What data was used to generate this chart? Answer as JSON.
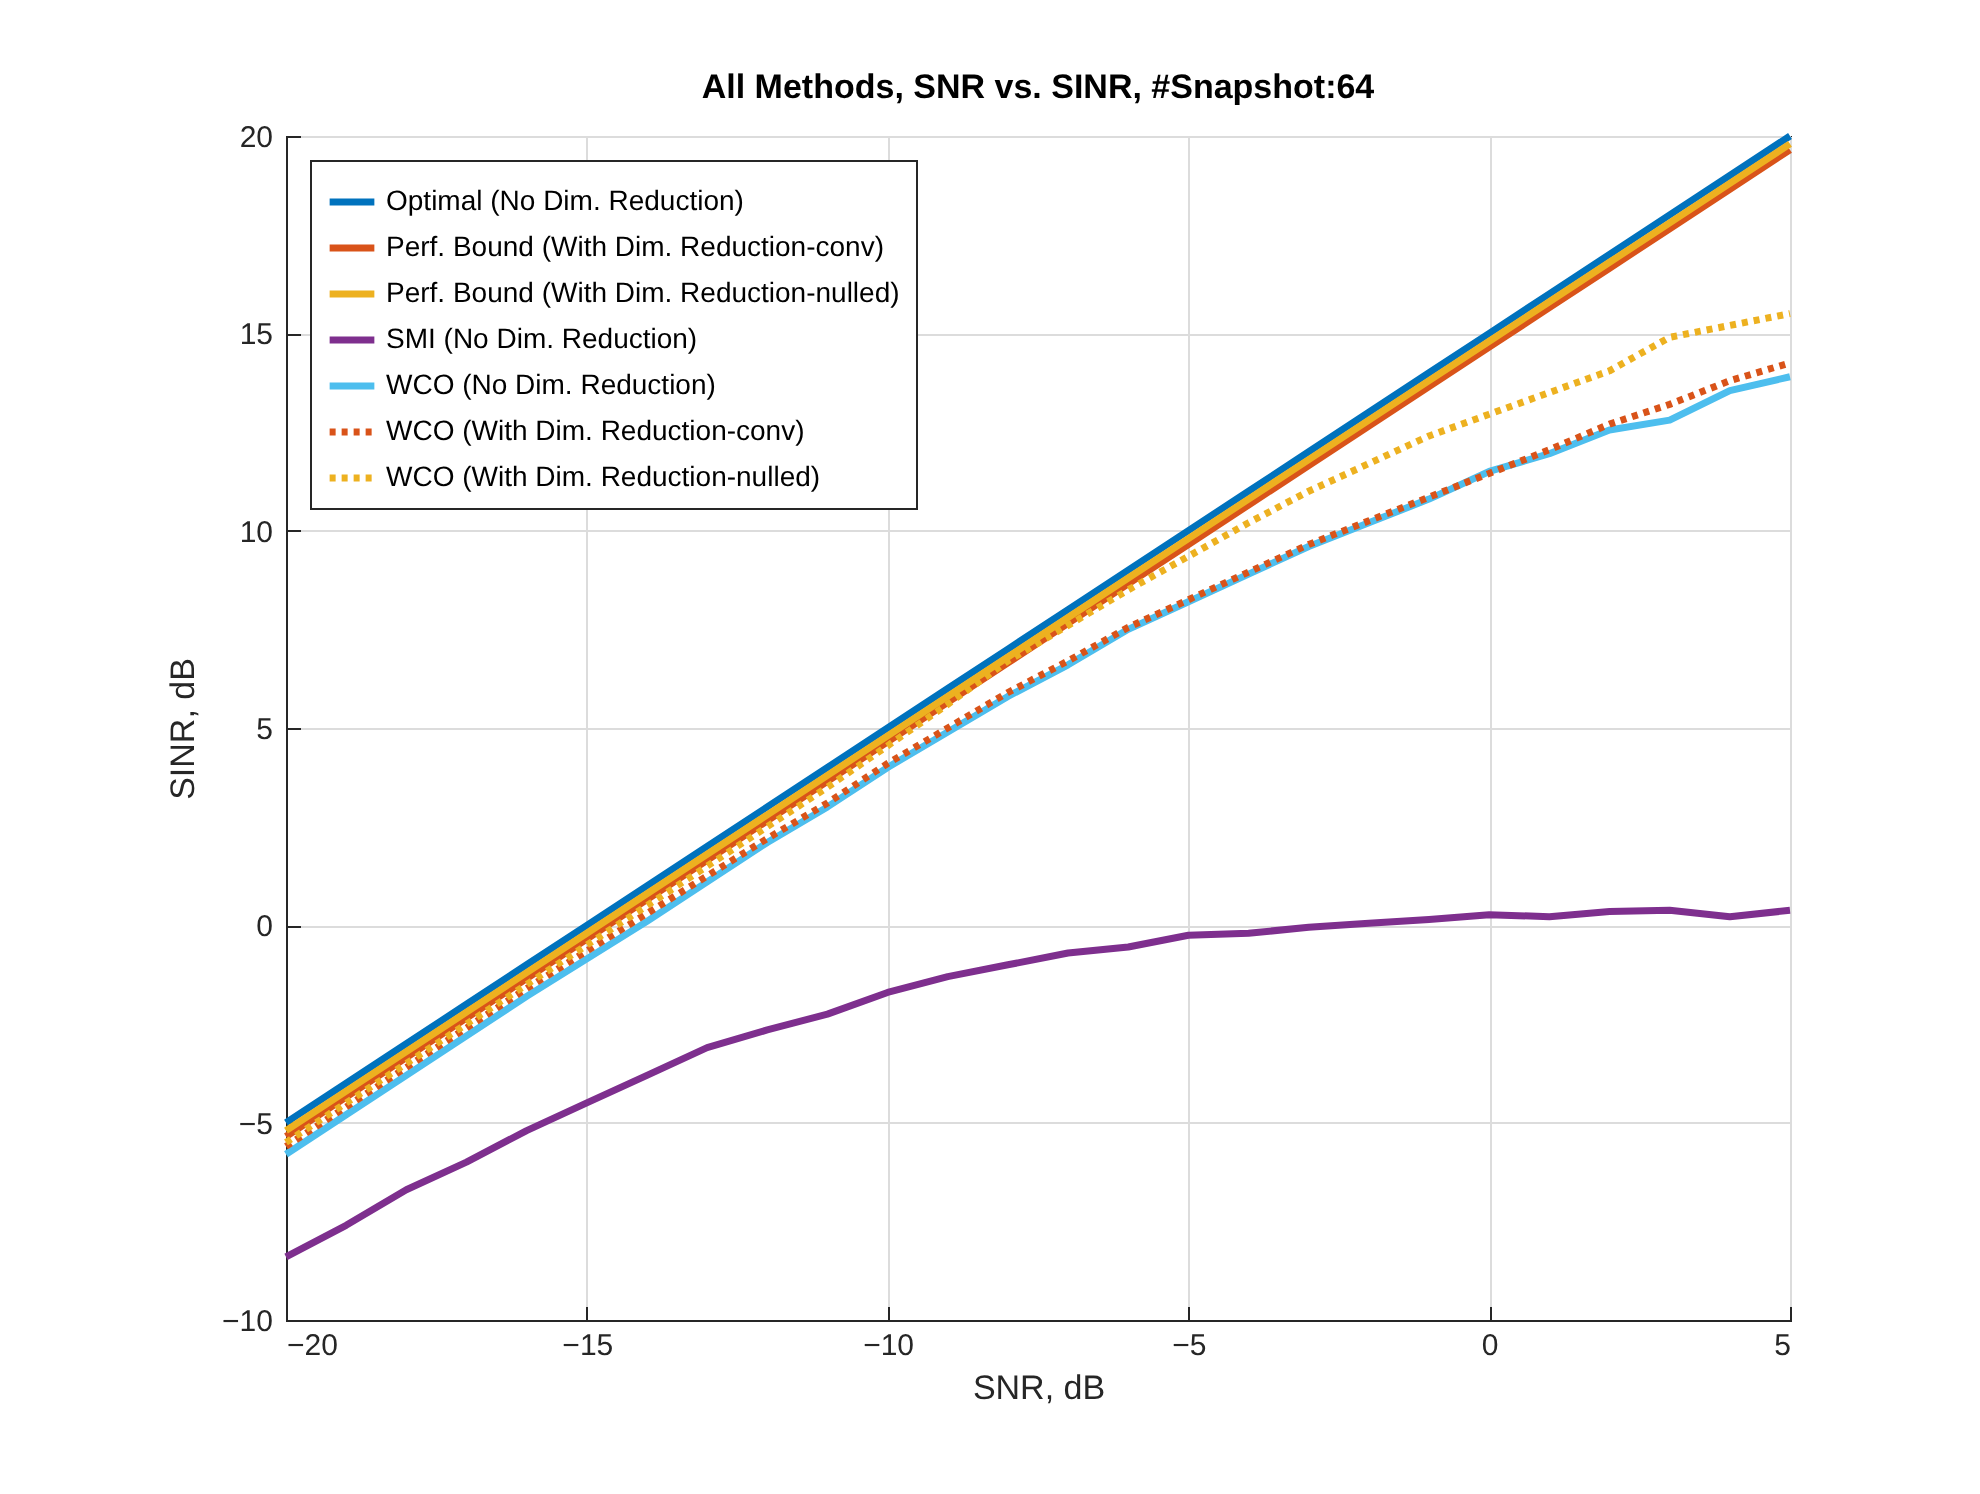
{
  "chart_data": {
    "type": "line",
    "title": "All Methods, SNR vs. SINR, #Snapshot:64",
    "xlabel": "SNR, dB",
    "ylabel": "SINR, dB",
    "x": [
      -20,
      -19,
      -18,
      -17,
      -16,
      -15,
      -14,
      -13,
      -12,
      -11,
      -10,
      -9,
      -8,
      -7,
      -6,
      -5,
      -4,
      -3,
      -2,
      -1,
      0,
      1,
      2,
      3,
      4,
      5
    ],
    "xlim": [
      -20,
      5
    ],
    "xticks": [
      -20,
      -15,
      -10,
      -5,
      0,
      5
    ],
    "ylim": [
      -10,
      20
    ],
    "yticks": [
      -10,
      -5,
      0,
      5,
      10,
      15,
      20
    ],
    "grid": true,
    "legend": "top left",
    "marker": "none",
    "series": [
      {
        "name": "Optimal (No Dim. Reduction)",
        "color": "#0072bd",
        "line_style": "solid",
        "values": [
          -5,
          -4,
          -3,
          -2,
          -1,
          0,
          1,
          2,
          3,
          4,
          5,
          6,
          7,
          8,
          9,
          10,
          11,
          12,
          13,
          14,
          15,
          16,
          17,
          18,
          19,
          20
        ]
      },
      {
        "name": "Perf. Bound (With Dim. Reduction-conv)",
        "color": "#d95319",
        "line_style": "solid",
        "values": [
          -5.35,
          -4.35,
          -3.35,
          -2.35,
          -1.35,
          -0.35,
          0.65,
          1.65,
          2.65,
          3.65,
          4.65,
          5.65,
          6.65,
          7.65,
          8.65,
          9.65,
          10.65,
          11.65,
          12.65,
          13.65,
          14.65,
          15.65,
          16.65,
          17.65,
          18.65,
          19.65
        ]
      },
      {
        "name": "Perf. Bound (With Dim. Reduction-nulled)",
        "color": "#edb120",
        "line_style": "solid",
        "values": [
          -5.2,
          -4.2,
          -3.2,
          -2.2,
          -1.2,
          -0.2,
          0.8,
          1.8,
          2.8,
          3.8,
          4.8,
          5.8,
          6.8,
          7.8,
          8.8,
          9.8,
          10.8,
          11.8,
          12.8,
          13.8,
          14.8,
          15.8,
          16.8,
          17.8,
          18.8,
          19.8
        ]
      },
      {
        "name": "SMI (No Dim. Reduction)",
        "color": "#7e2f8e",
        "line_style": "solid",
        "values": [
          -8.4,
          -7.6,
          -6.7,
          -6.0,
          -5.2,
          -4.5,
          -3.8,
          -3.1,
          -2.65,
          -2.25,
          -1.7,
          -1.3,
          -1.0,
          -0.7,
          -0.55,
          -0.25,
          -0.2,
          -0.05,
          0.05,
          0.15,
          0.27,
          0.22,
          0.35,
          0.38,
          0.22,
          0.38
        ]
      },
      {
        "name": "WCO (No Dim. Reduction)",
        "color": "#4dbeee",
        "line_style": "solid",
        "values": [
          -5.8,
          -4.8,
          -3.8,
          -2.8,
          -1.8,
          -0.85,
          0.1,
          1.1,
          2.1,
          3.0,
          4.0,
          4.9,
          5.8,
          6.6,
          7.5,
          8.2,
          8.9,
          9.6,
          10.2,
          10.8,
          11.5,
          11.95,
          12.55,
          12.8,
          13.55,
          13.9
        ]
      },
      {
        "name": "WCO (With Dim. Reduction-conv)",
        "color": "#d95319",
        "line_style": "dotted",
        "values": [
          -5.6,
          -4.6,
          -3.6,
          -2.6,
          -1.6,
          -0.65,
          0.3,
          1.25,
          2.2,
          3.1,
          4.1,
          5.0,
          5.9,
          6.7,
          7.55,
          8.25,
          8.95,
          9.65,
          10.25,
          10.85,
          11.45,
          12.05,
          12.7,
          13.2,
          13.8,
          14.25
        ]
      },
      {
        "name": "WCO (With Dim. Reduction-nulled)",
        "color": "#edb120",
        "line_style": "dotted",
        "values": [
          -5.5,
          -4.5,
          -3.5,
          -2.5,
          -1.5,
          -0.5,
          0.5,
          1.5,
          2.5,
          3.5,
          4.55,
          5.6,
          6.7,
          7.6,
          8.5,
          9.35,
          10.2,
          11.0,
          11.7,
          12.4,
          12.95,
          13.5,
          14.05,
          14.9,
          15.2,
          15.5
        ]
      }
    ]
  }
}
